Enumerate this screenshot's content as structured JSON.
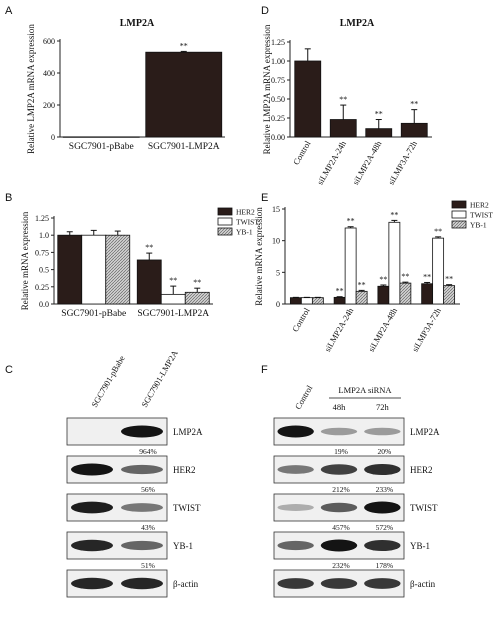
{
  "colors": {
    "dark": "#2a1c19",
    "white": "#ffffff",
    "hatch": "#bdbdbd",
    "axis": "#222222"
  },
  "chart_data": [
    {
      "panel": "A",
      "type": "bar",
      "title": "LMP2A",
      "ylabel": "Relative LMP2A mRNA expression",
      "categories": [
        "SGC7901-pBabe",
        "SGC7901-LMP2A"
      ],
      "values": [
        1,
        530
      ],
      "errors": [
        0,
        5
      ],
      "yticks": [
        "0",
        "200",
        "400",
        "600"
      ],
      "ylim": [
        0,
        600
      ],
      "annotations": [
        "",
        "**"
      ]
    },
    {
      "panel": "D",
      "type": "bar",
      "title": "LMP2A",
      "ylabel": "Relative LMP2A mRNA expression",
      "categories": [
        "Control",
        "siLMP2A-24h",
        "siLMP2A-48h",
        "siLMP3A-72h"
      ],
      "values": [
        1.0,
        0.23,
        0.11,
        0.18
      ],
      "errors": [
        0.16,
        0.19,
        0.12,
        0.18
      ],
      "yticks": [
        "0.00",
        "0.25",
        "0.50",
        "0.75",
        "1.00",
        "1.25"
      ],
      "ylim": [
        0,
        1.25
      ],
      "annotations": [
        "",
        "**",
        "**",
        "**"
      ]
    },
    {
      "panel": "B",
      "type": "bar",
      "title": "",
      "ylabel": "Relative mRNA expression",
      "categories": [
        "SGC7901-pBabe",
        "SGC7901-LMP2A"
      ],
      "series": [
        {
          "name": "HER2",
          "values": [
            1.0,
            0.64
          ],
          "errors": [
            0.05,
            0.1
          ]
        },
        {
          "name": "TWIST",
          "values": [
            1.0,
            0.14
          ],
          "errors": [
            0.07,
            0.12
          ]
        },
        {
          "name": "YB-1",
          "values": [
            1.0,
            0.17
          ],
          "errors": [
            0.06,
            0.06
          ]
        }
      ],
      "yticks": [
        "0.0",
        "0.25",
        "0.5",
        "0.75",
        "1.0",
        "1.25"
      ],
      "ylim": [
        0,
        1.25
      ],
      "annotations": [
        [
          "",
          "",
          ""
        ],
        [
          "**",
          "**",
          "**"
        ]
      ]
    },
    {
      "panel": "E",
      "type": "bar",
      "title": "",
      "ylabel": "Relative mRNA expression",
      "categories": [
        "Control",
        "siLMP2A-24h",
        "siLMP2A-48h",
        "siLMP3A-72h"
      ],
      "series": [
        {
          "name": "HER2",
          "values": [
            1.0,
            1.05,
            2.8,
            3.2
          ],
          "errors": [
            0.05,
            0.1,
            0.2,
            0.2
          ]
        },
        {
          "name": "TWIST",
          "values": [
            1.0,
            12.0,
            12.9,
            10.4
          ],
          "errors": [
            0.05,
            0.2,
            0.3,
            0.2
          ]
        },
        {
          "name": "YB-1",
          "values": [
            1.0,
            2.0,
            3.3,
            2.9
          ],
          "errors": [
            0.05,
            0.15,
            0.15,
            0.15
          ]
        }
      ],
      "yticks": [
        "0",
        "5",
        "10",
        "15"
      ],
      "ylim": [
        0,
        15
      ],
      "annotations": [
        [
          "",
          "",
          ""
        ],
        [
          "**",
          "**",
          "**"
        ],
        [
          "**",
          "**",
          "**"
        ],
        [
          "**",
          "**",
          "**"
        ]
      ]
    }
  ],
  "western_blots": [
    {
      "panel": "C",
      "lanes": [
        "SGC7901-pBabe",
        "SGC7901-LMP2A"
      ],
      "bands": [
        {
          "protein": "LMP2A",
          "intensity": [
            0.0,
            1.0
          ],
          "percent": "964%"
        },
        {
          "protein": "HER2",
          "intensity": [
            1.0,
            0.55
          ],
          "percent": "56%"
        },
        {
          "protein": "TWIST",
          "intensity": [
            0.95,
            0.45
          ],
          "percent": "43%"
        },
        {
          "protein": "YB-1",
          "intensity": [
            0.9,
            0.55
          ],
          "percent": "51%"
        },
        {
          "protein": "β-actin",
          "intensity": [
            0.9,
            0.9
          ],
          "percent": ""
        }
      ]
    },
    {
      "panel": "F",
      "lanes": [
        "Control",
        "48h",
        "72h"
      ],
      "group_label": "LMP2A siRNA",
      "bands": [
        {
          "protein": "LMP2A",
          "intensity": [
            1.0,
            0.25,
            0.25
          ],
          "percents": [
            "",
            "19%",
            "20%"
          ]
        },
        {
          "protein": "HER2",
          "intensity": [
            0.45,
            0.75,
            0.85
          ],
          "percents": [
            "",
            "212%",
            "233%"
          ]
        },
        {
          "protein": "TWIST",
          "intensity": [
            0.15,
            0.6,
            1.0
          ],
          "percents": [
            "",
            "457%",
            "572%"
          ]
        },
        {
          "protein": "YB-1",
          "intensity": [
            0.55,
            1.0,
            0.85
          ],
          "percents": [
            "",
            "232%",
            "178%"
          ]
        },
        {
          "protein": "β-actin",
          "intensity": [
            0.8,
            0.8,
            0.8
          ],
          "percents": [
            "",
            "",
            ""
          ]
        }
      ]
    }
  ]
}
